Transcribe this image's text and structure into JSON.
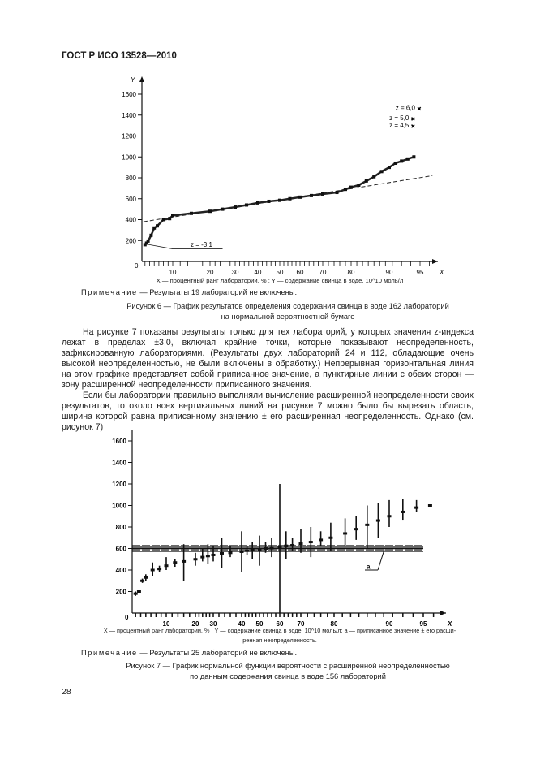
{
  "header": {
    "title": "ГОСТ Р ИСО 13528—2010"
  },
  "figure6": {
    "axis_legend": "X — процентный ранг лаборатории, % : Y — содержание свинца в воде, 10^10 моль/л",
    "note_prefix": "Примечание",
    "note_text": " — Результаты 19 лабораторий не включены.",
    "caption_line1": "Рисунок 6 — График результатов определения содержания свинца в воде 162 лабораторий",
    "caption_line2": "на нормальной вероятностной бумаге"
  },
  "paragraphs": [
    "На рисунке 7 показаны результаты только для тех лабораторий, у которых значения z-индекса лежат в пределах ±3,0, включая крайние точки, которые показывают неопределенность, зафиксированную лабораториями. (Результаты двух лабораторий 24 и 112, обладающие очень высокой неопределенностью, не были включены в обработку.) Непрерывная горизонтальная линия на этом графике представляет собой приписанное значение, а пунктирные линии с обеих сторон — зону расширенной неопределенности приписанного значения.",
    "Если бы лаборатории правильно выполняли вычисление расширенной неопределенности своих результатов, то около всех вертикальных линий на рисунке 7 можно было бы вырезать область, ширина которой равна приписанному значению ± его расширенная неопределенность. Однако (см. рисунок 7)"
  ],
  "figure7": {
    "axis_legend_line1": "X — процентный ранг лаборатории, % ; Y — содержание свинца в воде, 10^10 моль/л; a — приписанное значение ± его расши-",
    "axis_legend_line2": "ренная неопределенность.",
    "note_prefix": "Примечание",
    "note_text": " — Результаты 25 лабораторий не включены.",
    "caption_line1": "Рисунок 7 — График нормальной функции вероятности с расширенной неопределенностью",
    "caption_line2": "по данным содержания свинца в воде 156 лабораторий"
  },
  "page_number": "28",
  "chart_data": [
    {
      "type": "scatter",
      "xlabel": "X",
      "ylabel": "Y",
      "x_ticks": [
        10,
        20,
        30,
        40,
        50,
        60,
        70,
        80,
        90,
        95
      ],
      "y_ticks": [
        200,
        400,
        600,
        800,
        1000,
        1200,
        1400,
        1600
      ],
      "origin_label": "0",
      "ylim": [
        0,
        1600
      ],
      "x_scale": "normal-probability",
      "points": [
        [
          1,
          160
        ],
        [
          1.5,
          175
        ],
        [
          2,
          195
        ],
        [
          3,
          250
        ],
        [
          4,
          320
        ],
        [
          5,
          340
        ],
        [
          7,
          400
        ],
        [
          9,
          410
        ],
        [
          10,
          440
        ],
        [
          15,
          460
        ],
        [
          20,
          480
        ],
        [
          25,
          500
        ],
        [
          30,
          520
        ],
        [
          35,
          540
        ],
        [
          40,
          560
        ],
        [
          45,
          575
        ],
        [
          50,
          585
        ],
        [
          55,
          600
        ],
        [
          60,
          615
        ],
        [
          65,
          630
        ],
        [
          70,
          645
        ],
        [
          75,
          660
        ],
        [
          78,
          690
        ],
        [
          80,
          710
        ],
        [
          82,
          730
        ],
        [
          84,
          770
        ],
        [
          86,
          810
        ],
        [
          88,
          860
        ],
        [
          90,
          900
        ],
        [
          91,
          940
        ],
        [
          92,
          960
        ],
        [
          93,
          980
        ],
        [
          94,
          1000
        ]
      ],
      "fit_line": [
        [
          0.5,
          380
        ],
        [
          97,
          820
        ]
      ],
      "annotations": [
        {
          "text": "z = 6,0",
          "x": 95,
          "y": 1450
        },
        {
          "text": "z = 5,0",
          "x": 94,
          "y": 1350
        },
        {
          "text": "z = 4,5",
          "x": 94,
          "y": 1280
        },
        {
          "text": "z = -3,1",
          "x": 10,
          "y": 140
        }
      ]
    },
    {
      "type": "errorbar",
      "xlabel": "X",
      "ylabel": "Y",
      "x_ticks": [
        10,
        20,
        30,
        40,
        50,
        60,
        70,
        80,
        90,
        95
      ],
      "y_ticks": [
        200,
        400,
        600,
        800,
        1000,
        1200,
        1400,
        1600
      ],
      "origin_label": "0",
      "ylim": [
        0,
        1600
      ],
      "assigned_value": 600,
      "uncertainty_band": [
        580,
        620
      ],
      "band_label": "a",
      "bars": [
        [
          1,
          180,
          160,
          200
        ],
        [
          2,
          200,
          190,
          210
        ],
        [
          3,
          300,
          280,
          320
        ],
        [
          4,
          330,
          300,
          360
        ],
        [
          6,
          400,
          340,
          470
        ],
        [
          8,
          410,
          380,
          440
        ],
        [
          10,
          440,
          400,
          520
        ],
        [
          13,
          470,
          430,
          500
        ],
        [
          16,
          480,
          300,
          640
        ],
        [
          20,
          500,
          440,
          560
        ],
        [
          24,
          520,
          480,
          600
        ],
        [
          27,
          530,
          460,
          640
        ],
        [
          30,
          540,
          480,
          620
        ],
        [
          33,
          555,
          420,
          700
        ],
        [
          36,
          560,
          520,
          620
        ],
        [
          40,
          570,
          380,
          760
        ],
        [
          43,
          580,
          540,
          620
        ],
        [
          46,
          585,
          500,
          660
        ],
        [
          50,
          590,
          440,
          720
        ],
        [
          53,
          600,
          560,
          660
        ],
        [
          56,
          605,
          520,
          700
        ],
        [
          60,
          615,
          0,
          1200
        ],
        [
          63,
          625,
          500,
          760
        ],
        [
          66,
          630,
          580,
          700
        ],
        [
          70,
          645,
          560,
          780
        ],
        [
          73,
          660,
          520,
          800
        ],
        [
          76,
          680,
          620,
          760
        ],
        [
          79,
          700,
          580,
          840
        ],
        [
          82,
          740,
          620,
          880
        ],
        [
          84,
          780,
          680,
          900
        ],
        [
          86,
          820,
          600,
          1000
        ],
        [
          88,
          860,
          700,
          1020
        ],
        [
          90,
          900,
          800,
          1050
        ],
        [
          92,
          940,
          860,
          1060
        ],
        [
          94,
          980,
          940,
          1050
        ],
        [
          96,
          1000,
          990,
          1010
        ]
      ]
    }
  ]
}
